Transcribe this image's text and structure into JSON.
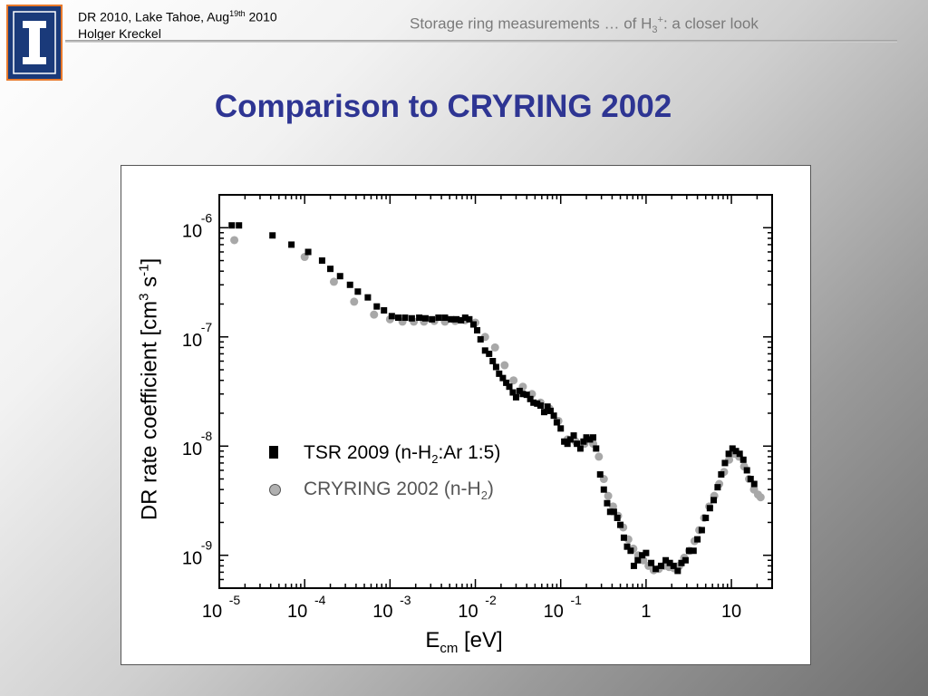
{
  "header": {
    "left_line1_main": "DR 2010, Lake Tahoe, Aug",
    "left_line1_sup": "19th",
    "left_line1_tail": " 2010",
    "left_line2": "Holger Kreckel",
    "right_prefix": "Storage ring measurements … of H",
    "right_sub": "3",
    "right_sup": "+",
    "right_suffix": ": a closer look"
  },
  "slide_title": "Comparison to CRYRING 2002",
  "colors": {
    "title": "#2e3593",
    "tsr": "#000000",
    "cryring": "#a8a8a8",
    "logo_bg": "#1a3a7a",
    "logo_border": "#e8792b"
  },
  "chart_data": {
    "type": "scatter",
    "xscale": "log",
    "yscale": "log",
    "xlim": [
      1e-05,
      30
    ],
    "ylim": [
      5e-10,
      2e-06
    ],
    "xticks": [
      {
        "base": "10",
        "exp": "-5",
        "value": 1e-05
      },
      {
        "base": "10",
        "exp": "-4",
        "value": 0.0001
      },
      {
        "base": "10",
        "exp": "-3",
        "value": 0.001
      },
      {
        "base": "10",
        "exp": "-2",
        "value": 0.01
      },
      {
        "base": "10",
        "exp": "-1",
        "value": 0.1
      },
      {
        "base": "1",
        "exp": "",
        "value": 1
      },
      {
        "base": "10",
        "exp": "",
        "value": 10
      }
    ],
    "yticks": [
      {
        "base": "10",
        "exp": "-6",
        "value": 1e-06
      },
      {
        "base": "10",
        "exp": "-7",
        "value": 1e-07
      },
      {
        "base": "10",
        "exp": "-8",
        "value": 1e-08
      },
      {
        "base": "10",
        "exp": "-9",
        "value": 1e-09
      }
    ],
    "xlabel_main": "E",
    "xlabel_sub": "cm",
    "xlabel_unit": " [eV]",
    "ylabel_main": "DR rate coefficient [cm",
    "ylabel_sup1": "3",
    "ylabel_mid": " s",
    "ylabel_sup2": "-1",
    "ylabel_end": "]",
    "series": [
      {
        "name_main": "TSR 2009 (n-H",
        "name_sub": "2",
        "name_end": ":Ar 1:5)",
        "marker": "square",
        "points": [
          [
            1.4e-05,
            1.05e-06
          ],
          [
            1.7e-05,
            1.05e-06
          ],
          [
            4.2e-05,
            8.5e-07
          ],
          [
            7e-05,
            7e-07
          ],
          [
            0.00011,
            6e-07
          ],
          [
            0.00016,
            5e-07
          ],
          [
            0.0002,
            4.2e-07
          ],
          [
            0.00026,
            3.6e-07
          ],
          [
            0.00034,
            3e-07
          ],
          [
            0.00042,
            2.6e-07
          ],
          [
            0.00055,
            2.3e-07
          ],
          [
            0.0007,
            1.9e-07
          ],
          [
            0.00085,
            1.75e-07
          ],
          [
            0.00105,
            1.55e-07
          ],
          [
            0.00125,
            1.5e-07
          ],
          [
            0.0015,
            1.5e-07
          ],
          [
            0.0018,
            1.48e-07
          ],
          [
            0.0022,
            1.5e-07
          ],
          [
            0.0026,
            1.48e-07
          ],
          [
            0.0031,
            1.45e-07
          ],
          [
            0.0037,
            1.5e-07
          ],
          [
            0.0044,
            1.5e-07
          ],
          [
            0.0052,
            1.45e-07
          ],
          [
            0.006,
            1.45e-07
          ],
          [
            0.0068,
            1.42e-07
          ],
          [
            0.0076,
            1.5e-07
          ],
          [
            0.0085,
            1.45e-07
          ],
          [
            0.0095,
            1.3e-07
          ],
          [
            0.0105,
            1.15e-07
          ],
          [
            0.0115,
            9.5e-08
          ],
          [
            0.013,
            7.5e-08
          ],
          [
            0.0145,
            7e-08
          ],
          [
            0.016,
            6e-08
          ],
          [
            0.0175,
            5.3e-08
          ],
          [
            0.019,
            4.6e-08
          ],
          [
            0.021,
            4.2e-08
          ],
          [
            0.023,
            3.8e-08
          ],
          [
            0.025,
            3.5e-08
          ],
          [
            0.0275,
            3.1e-08
          ],
          [
            0.03,
            2.8e-08
          ],
          [
            0.033,
            3.2e-08
          ],
          [
            0.036,
            3e-08
          ],
          [
            0.04,
            2.95e-08
          ],
          [
            0.044,
            2.7e-08
          ],
          [
            0.048,
            2.5e-08
          ],
          [
            0.053,
            2.45e-08
          ],
          [
            0.058,
            2.35e-08
          ],
          [
            0.064,
            2.05e-08
          ],
          [
            0.07,
            2.3e-08
          ],
          [
            0.076,
            2.1e-08
          ],
          [
            0.083,
            1.9e-08
          ],
          [
            0.09,
            1.65e-08
          ],
          [
            0.1,
            1.45e-08
          ],
          [
            0.11,
            1.1e-08
          ],
          [
            0.12,
            1.05e-08
          ],
          [
            0.13,
            1.15e-08
          ],
          [
            0.142,
            1.25e-08
          ],
          [
            0.155,
            1.05e-08
          ],
          [
            0.17,
            9.5e-09
          ],
          [
            0.185,
            1.1e-08
          ],
          [
            0.2,
            1.2e-08
          ],
          [
            0.22,
            1.15e-08
          ],
          [
            0.24,
            1.2e-08
          ],
          [
            0.26,
            9.5e-09
          ],
          [
            0.29,
            5.5e-09
          ],
          [
            0.32,
            4e-09
          ],
          [
            0.35,
            3e-09
          ],
          [
            0.38,
            2.5e-09
          ],
          [
            0.42,
            2.5e-09
          ],
          [
            0.46,
            2.2e-09
          ],
          [
            0.5,
            1.9e-09
          ],
          [
            0.55,
            1.45e-09
          ],
          [
            0.6,
            1.2e-09
          ],
          [
            0.66,
            1.1e-09
          ],
          [
            0.72,
            8e-10
          ],
          [
            0.8,
            9e-10
          ],
          [
            0.9,
            1e-09
          ],
          [
            1.0,
            1.05e-09
          ],
          [
            1.15,
            8.5e-10
          ],
          [
            1.3,
            7.5e-10
          ],
          [
            1.5,
            8e-10
          ],
          [
            1.7,
            9e-10
          ],
          [
            1.9,
            8.5e-10
          ],
          [
            2.1,
            8e-10
          ],
          [
            2.35,
            7.2e-10
          ],
          [
            2.6,
            8.5e-10
          ],
          [
            2.9,
            9e-10
          ],
          [
            3.2,
            1.1e-09
          ],
          [
            3.6,
            1.1e-09
          ],
          [
            4.0,
            1.4e-09
          ],
          [
            4.5,
            1.7e-09
          ],
          [
            5.0,
            2.2e-09
          ],
          [
            5.6,
            2.7e-09
          ],
          [
            6.2,
            3.2e-09
          ],
          [
            6.9,
            4.2e-09
          ],
          [
            7.6,
            5.5e-09
          ],
          [
            8.4,
            7e-09
          ],
          [
            9.3,
            8.5e-09
          ],
          [
            10.3,
            9.5e-09
          ],
          [
            11.3,
            9e-09
          ],
          [
            12.5,
            8.5e-09
          ],
          [
            13.8,
            7.5e-09
          ],
          [
            15.2,
            6e-09
          ],
          [
            16.8,
            5e-09
          ],
          [
            18.5,
            4.5e-09
          ]
        ]
      },
      {
        "name_main": "CRYRING 2002 (n-H",
        "name_sub": "2",
        "name_end": ")",
        "marker": "circle",
        "points": [
          [
            1.5e-05,
            7.7e-07
          ],
          [
            0.0001,
            5.4e-07
          ],
          [
            0.00022,
            3.2e-07
          ],
          [
            0.00038,
            2.1e-07
          ],
          [
            0.00065,
            1.6e-07
          ],
          [
            0.001,
            1.45e-07
          ],
          [
            0.0014,
            1.38e-07
          ],
          [
            0.0019,
            1.38e-07
          ],
          [
            0.0025,
            1.38e-07
          ],
          [
            0.0033,
            1.4e-07
          ],
          [
            0.0044,
            1.38e-07
          ],
          [
            0.0058,
            1.4e-07
          ],
          [
            0.0076,
            1.42e-07
          ],
          [
            0.01,
            1.35e-07
          ],
          [
            0.013,
            1e-07
          ],
          [
            0.017,
            8e-08
          ],
          [
            0.022,
            5.5e-08
          ],
          [
            0.028,
            4e-08
          ],
          [
            0.036,
            3.5e-08
          ],
          [
            0.046,
            3e-08
          ],
          [
            0.058,
            2.5e-08
          ],
          [
            0.074,
            2.2e-08
          ],
          [
            0.094,
            1.7e-08
          ],
          [
            0.12,
            1.15e-08
          ],
          [
            0.15,
            1.1e-08
          ],
          [
            0.19,
            1.05e-08
          ],
          [
            0.24,
            1.05e-08
          ],
          [
            0.28,
            8e-09
          ],
          [
            0.32,
            5e-09
          ],
          [
            0.36,
            3.5e-09
          ],
          [
            0.41,
            2.8e-09
          ],
          [
            0.47,
            2.3e-09
          ],
          [
            0.54,
            1.8e-09
          ],
          [
            0.62,
            1.4e-09
          ],
          [
            0.71,
            1.15e-09
          ],
          [
            0.81,
            1e-09
          ],
          [
            0.93,
            9e-10
          ],
          [
            1.07,
            8e-10
          ],
          [
            1.23,
            7.3e-10
          ],
          [
            1.41,
            7.5e-10
          ],
          [
            1.62,
            8e-10
          ],
          [
            1.86,
            7.8e-10
          ],
          [
            2.13,
            7.6e-10
          ],
          [
            2.45,
            8e-10
          ],
          [
            2.8,
            9.5e-10
          ],
          [
            3.2,
            1.1e-09
          ],
          [
            3.7,
            1.35e-09
          ],
          [
            4.2,
            1.7e-09
          ],
          [
            4.8,
            2.2e-09
          ],
          [
            5.5,
            2.8e-09
          ],
          [
            6.3,
            3.5e-09
          ],
          [
            7.2,
            4.5e-09
          ],
          [
            8.2,
            5.8e-09
          ],
          [
            9.4,
            7.5e-09
          ],
          [
            10.8,
            8.5e-09
          ],
          [
            12.3,
            8e-09
          ],
          [
            14.1,
            6.5e-09
          ],
          [
            16.1,
            5e-09
          ],
          [
            18.4,
            4e-09
          ],
          [
            20.5,
            3.6e-09
          ],
          [
            22,
            3.4e-09
          ]
        ]
      }
    ]
  }
}
